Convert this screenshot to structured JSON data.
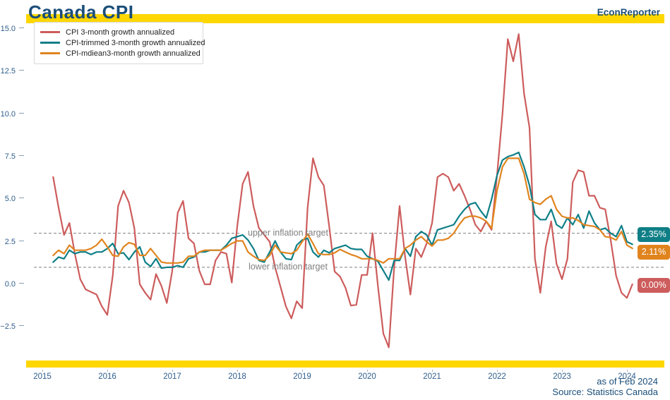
{
  "header": {
    "title": "Canada CPI",
    "brand": "EconReporter"
  },
  "footer": {
    "as_of": "as of Feb 2024",
    "source": "Source: Statistics Canada"
  },
  "colors": {
    "accent_bar": "#FFD700",
    "title_text": "#1A4E79",
    "axis_label": "#2F5D8C",
    "target_line": "#7F7F7F",
    "target_text": "#808080"
  },
  "annotations": {
    "upper_target": {
      "label": "upper inflation target",
      "value": 3.0
    },
    "lower_target": {
      "label": "lower inflation target",
      "value": 1.0
    }
  },
  "end_labels": [
    {
      "text": "2.35%",
      "color": "#0F7F87"
    },
    {
      "text": "2.11%",
      "color": "#E0841E"
    },
    {
      "text": "0.00%",
      "color": "#CD5C5C"
    }
  ],
  "chart_data": {
    "type": "line",
    "title": "Canada CPI",
    "frequency": "monthly",
    "x_start": "2015-03",
    "x_end": "2024-02",
    "x_ticks": [
      "2015",
      "2016",
      "2017",
      "2018",
      "2019",
      "2020",
      "2021",
      "2022",
      "2023",
      "2024"
    ],
    "y_ticks": [
      15.0,
      12.5,
      10.0,
      7.5,
      5.0,
      2.5,
      0.0,
      -2.5
    ],
    "y_tick_labels": [
      "15.0",
      "12.5",
      "10.0",
      "7.5",
      "5.0",
      "2.5",
      "0.0",
      "−2.5"
    ],
    "ylim": [
      -4.3,
      15.3
    ],
    "grid": "off",
    "legend_position": "upper-left",
    "series": [
      {
        "name": "CPI 3-month growth annualized",
        "color": "#CD5C5C",
        "values": [
          6.3,
          4.5,
          2.9,
          3.6,
          1.8,
          0.3,
          -0.3,
          -0.45,
          -0.6,
          -1.3,
          -1.8,
          0.5,
          4.6,
          5.5,
          4.8,
          3.3,
          0.0,
          -0.5,
          -0.9,
          0.6,
          -0.1,
          -1.1,
          0.8,
          4.2,
          4.9,
          2.7,
          2.4,
          0.8,
          0.0,
          0.0,
          1.4,
          1.9,
          1.8,
          0.1,
          3.4,
          5.9,
          6.6,
          4.6,
          3.3,
          2.9,
          2.5,
          1.0,
          -0.15,
          -1.3,
          -2.0,
          -1.0,
          -1.4,
          4.5,
          7.4,
          6.3,
          5.8,
          3.4,
          0.75,
          0.45,
          -0.2,
          -1.25,
          -1.2,
          0.55,
          0.55,
          3.0,
          -0.1,
          -2.9,
          -3.7,
          1.0,
          4.6,
          1.65,
          -0.6,
          2.1,
          1.6,
          2.4,
          3.6,
          6.3,
          6.5,
          6.3,
          5.5,
          5.9,
          5.2,
          4.4,
          3.5,
          3.1,
          3.7,
          3.2,
          6.4,
          10.0,
          14.4,
          13.1,
          14.7,
          11.2,
          9.2,
          1.5,
          -0.5,
          2.2,
          3.7,
          1.2,
          0.3,
          1.5,
          6.0,
          6.7,
          6.6,
          5.2,
          5.2,
          4.5,
          4.4,
          2.6,
          0.5,
          -0.5,
          -0.8,
          0.0
        ]
      },
      {
        "name": "CPI-trimmed 3-month growth annualized",
        "color": "#0F7F87",
        "values": [
          1.3,
          1.6,
          1.5,
          2.0,
          1.8,
          1.9,
          1.9,
          1.75,
          1.9,
          1.9,
          2.1,
          2.4,
          1.8,
          1.85,
          1.45,
          1.9,
          2.2,
          1.3,
          1.05,
          1.5,
          0.95,
          1.0,
          1.0,
          1.1,
          1.0,
          1.5,
          1.6,
          1.9,
          1.9,
          2.0,
          2.0,
          2.0,
          2.3,
          2.7,
          2.8,
          2.9,
          2.6,
          2.1,
          1.4,
          1.3,
          1.9,
          2.55,
          1.9,
          1.5,
          1.45,
          2.3,
          2.6,
          2.7,
          1.9,
          1.6,
          2.0,
          1.85,
          2.1,
          2.2,
          2.3,
          2.1,
          2.05,
          2.05,
          1.65,
          1.5,
          1.35,
          0.8,
          0.25,
          1.4,
          1.4,
          2.1,
          1.65,
          2.8,
          3.1,
          2.9,
          2.3,
          3.2,
          3.3,
          3.4,
          3.5,
          4.0,
          4.4,
          4.7,
          4.8,
          4.3,
          3.9,
          5.0,
          6.4,
          7.3,
          7.5,
          7.6,
          7.75,
          6.9,
          5.8,
          4.1,
          3.8,
          3.8,
          4.4,
          3.5,
          3.3,
          3.9,
          3.5,
          4.1,
          3.3,
          4.3,
          3.6,
          3.2,
          3.3,
          3.0,
          2.8,
          3.45,
          2.5,
          2.35
        ]
      },
      {
        "name": "CPI-mdiean3-month growth annualized",
        "color": "#E0841E",
        "values": [
          1.7,
          2.0,
          1.8,
          2.3,
          2.0,
          2.0,
          2.0,
          2.1,
          2.3,
          2.65,
          2.2,
          1.7,
          1.65,
          2.2,
          2.45,
          2.35,
          1.7,
          1.7,
          2.1,
          1.7,
          1.3,
          1.25,
          1.25,
          1.25,
          1.3,
          1.65,
          1.65,
          1.9,
          2.0,
          2.0,
          2.0,
          2.0,
          2.2,
          2.4,
          2.55,
          2.55,
          1.9,
          1.65,
          1.45,
          1.4,
          1.7,
          2.3,
          1.9,
          1.85,
          1.8,
          2.0,
          2.5,
          2.95,
          2.4,
          1.8,
          1.75,
          1.75,
          1.85,
          2.05,
          1.9,
          1.75,
          1.65,
          1.5,
          1.5,
          1.5,
          1.4,
          1.25,
          1.5,
          1.5,
          1.5,
          2.1,
          2.3,
          2.6,
          2.8,
          2.5,
          2.25,
          2.6,
          2.6,
          2.7,
          3.0,
          3.5,
          3.9,
          4.0,
          4.0,
          3.9,
          3.7,
          3.3,
          5.5,
          6.9,
          7.4,
          7.4,
          7.4,
          6.5,
          5.0,
          4.8,
          4.7,
          5.0,
          5.2,
          4.4,
          4.0,
          3.9,
          3.9,
          3.75,
          3.5,
          3.45,
          3.4,
          3.2,
          2.8,
          2.75,
          2.6,
          3.1,
          2.3,
          2.11
        ]
      }
    ]
  }
}
